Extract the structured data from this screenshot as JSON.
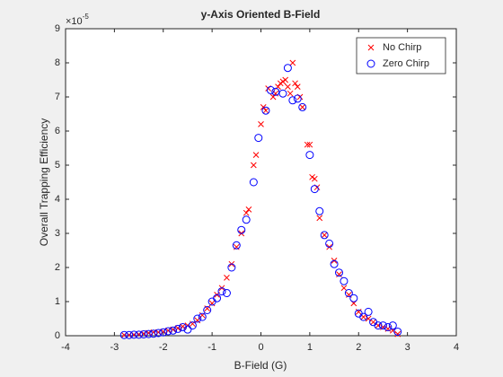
{
  "chart_data": {
    "type": "scatter",
    "title": "y-Axis Oriented B-Field",
    "xlabel": "B-Field (G)",
    "ylabel": "Overall Trapping Efficiency",
    "y_exponent": {
      "base": "×10",
      "power": "-5"
    },
    "xlim": [
      -4,
      4
    ],
    "xticks": [
      -4,
      -3,
      -2,
      -1,
      0,
      1,
      2,
      3,
      4
    ],
    "ylim": [
      0,
      9
    ],
    "yticks": [
      0,
      1,
      2,
      3,
      4,
      5,
      6,
      7,
      8,
      9
    ],
    "grid": false,
    "legend": "top-right",
    "series": [
      {
        "name": "No Chirp",
        "color": "#ff0000",
        "marker": "x",
        "x": [
          -2.8,
          -2.7,
          -2.6,
          -2.5,
          -2.4,
          -2.3,
          -2.2,
          -2.1,
          -2.0,
          -1.9,
          -1.8,
          -1.7,
          -1.6,
          -1.5,
          -1.4,
          -1.3,
          -1.2,
          -1.1,
          -1.0,
          -0.9,
          -0.8,
          -0.7,
          -0.6,
          -0.5,
          -0.4,
          -0.3,
          -0.25,
          -0.15,
          -0.1,
          0.0,
          0.05,
          0.1,
          0.15,
          0.25,
          0.3,
          0.35,
          0.4,
          0.45,
          0.5,
          0.55,
          0.6,
          0.65,
          0.7,
          0.75,
          0.8,
          0.85,
          0.95,
          1.0,
          1.05,
          1.1,
          1.15,
          1.2,
          1.3,
          1.4,
          1.5,
          1.6,
          1.7,
          1.8,
          1.9,
          2.0,
          2.1,
          2.2,
          2.3,
          2.4,
          2.5,
          2.6,
          2.7,
          2.8
        ],
        "values": [
          0.02,
          0.02,
          0.03,
          0.04,
          0.06,
          0.08,
          0.1,
          0.1,
          0.12,
          0.15,
          0.18,
          0.22,
          0.27,
          0.3,
          0.35,
          0.45,
          0.6,
          0.8,
          0.95,
          1.2,
          1.4,
          1.7,
          2.1,
          2.6,
          3.0,
          3.6,
          3.7,
          5.0,
          5.3,
          6.2,
          6.7,
          6.6,
          7.25,
          7.0,
          7.1,
          7.3,
          7.4,
          7.45,
          7.5,
          7.3,
          7.1,
          8.0,
          7.4,
          7.3,
          7.0,
          6.7,
          5.6,
          5.6,
          4.65,
          4.6,
          4.35,
          3.45,
          2.95,
          2.6,
          2.2,
          1.8,
          1.4,
          1.2,
          0.95,
          0.7,
          0.55,
          0.5,
          0.4,
          0.3,
          0.25,
          0.2,
          0.15,
          0.05
        ]
      },
      {
        "name": "Zero Chirp",
        "color": "#0000ff",
        "marker": "o",
        "x": [
          -2.8,
          -2.7,
          -2.6,
          -2.5,
          -2.4,
          -2.3,
          -2.2,
          -2.1,
          -2.0,
          -1.9,
          -1.8,
          -1.7,
          -1.6,
          -1.5,
          -1.4,
          -1.3,
          -1.2,
          -1.1,
          -1.0,
          -0.9,
          -0.8,
          -0.7,
          -0.6,
          -0.5,
          -0.4,
          -0.3,
          -0.15,
          -0.05,
          0.1,
          0.2,
          0.3,
          0.45,
          0.55,
          0.65,
          0.75,
          0.85,
          1.0,
          1.1,
          1.2,
          1.3,
          1.4,
          1.5,
          1.6,
          1.7,
          1.8,
          1.9,
          2.0,
          2.1,
          2.2,
          2.3,
          2.4,
          2.5,
          2.6,
          2.7,
          2.8
        ],
        "values": [
          0.02,
          0.02,
          0.03,
          0.03,
          0.04,
          0.05,
          0.06,
          0.08,
          0.1,
          0.13,
          0.15,
          0.2,
          0.25,
          0.18,
          0.3,
          0.5,
          0.55,
          0.75,
          1.0,
          1.1,
          1.3,
          1.25,
          2.0,
          2.65,
          3.1,
          3.4,
          4.5,
          5.8,
          6.6,
          7.2,
          7.15,
          7.1,
          7.85,
          6.9,
          6.95,
          6.7,
          5.3,
          4.3,
          3.65,
          2.95,
          2.7,
          2.1,
          1.85,
          1.6,
          1.25,
          1.1,
          0.65,
          0.55,
          0.7,
          0.4,
          0.3,
          0.3,
          0.25,
          0.3,
          0.12
        ]
      }
    ]
  }
}
